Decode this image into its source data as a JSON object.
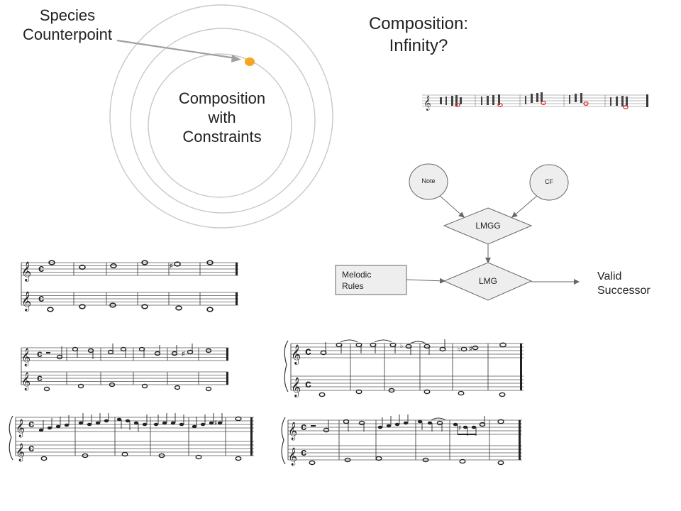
{
  "top_left_label": [
    "Species",
    "Counterpoint"
  ],
  "circle_center_label": [
    "Composition",
    "with",
    "Constraints"
  ],
  "top_right_title": [
    "Composition:",
    "Infinity?"
  ],
  "flow": {
    "note": "Note",
    "cf": "CF",
    "lmgg": "LMGG",
    "lmg": "LMG",
    "melodic_rules": [
      "Melodic",
      "Rules"
    ],
    "valid_successor": [
      "Valid",
      "Successor"
    ]
  },
  "colors": {
    "dot": "#f5a623",
    "circle_stroke": "#bdbdbd",
    "arrow": "#999999",
    "flow_fill": "#eeeeee",
    "note_red": "#e03030"
  }
}
